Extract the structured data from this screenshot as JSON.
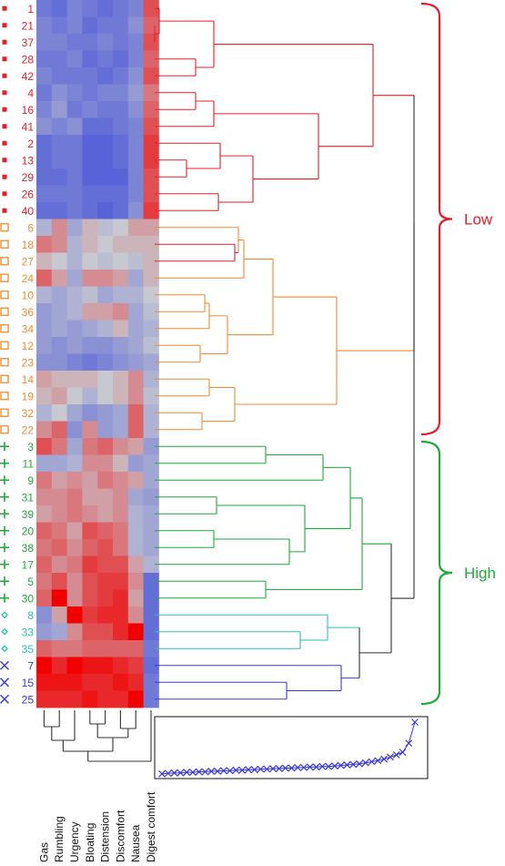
{
  "chart_data": {
    "type": "heatmap",
    "title": "",
    "columns": [
      "Gas",
      "Rumbling",
      "Urgency",
      "Bloating",
      "Distension",
      "Discomfort",
      "Nausea",
      "Digest comfort"
    ],
    "rows": [
      {
        "label": "1",
        "group": "g1"
      },
      {
        "label": "21",
        "group": "g1"
      },
      {
        "label": "37",
        "group": "g1"
      },
      {
        "label": "28",
        "group": "g1"
      },
      {
        "label": "42",
        "group": "g1"
      },
      {
        "label": "4",
        "group": "g1"
      },
      {
        "label": "16",
        "group": "g1"
      },
      {
        "label": "41",
        "group": "g1"
      },
      {
        "label": "2",
        "group": "g1"
      },
      {
        "label": "13",
        "group": "g1"
      },
      {
        "label": "29",
        "group": "g1"
      },
      {
        "label": "26",
        "group": "g1"
      },
      {
        "label": "40",
        "group": "g1"
      },
      {
        "label": "6",
        "group": "g2"
      },
      {
        "label": "18",
        "group": "g2"
      },
      {
        "label": "27",
        "group": "g2"
      },
      {
        "label": "24",
        "group": "g2"
      },
      {
        "label": "10",
        "group": "g2"
      },
      {
        "label": "36",
        "group": "g2"
      },
      {
        "label": "34",
        "group": "g2"
      },
      {
        "label": "12",
        "group": "g2"
      },
      {
        "label": "23",
        "group": "g2"
      },
      {
        "label": "14",
        "group": "g2"
      },
      {
        "label": "19",
        "group": "g2"
      },
      {
        "label": "32",
        "group": "g2"
      },
      {
        "label": "22",
        "group": "g2"
      },
      {
        "label": "3",
        "group": "g3"
      },
      {
        "label": "11",
        "group": "g3"
      },
      {
        "label": "9",
        "group": "g3"
      },
      {
        "label": "31",
        "group": "g3"
      },
      {
        "label": "39",
        "group": "g3"
      },
      {
        "label": "20",
        "group": "g3"
      },
      {
        "label": "38",
        "group": "g3"
      },
      {
        "label": "17",
        "group": "g3"
      },
      {
        "label": "5",
        "group": "g3"
      },
      {
        "label": "30",
        "group": "g3"
      },
      {
        "label": "8",
        "group": "g4"
      },
      {
        "label": "33",
        "group": "g4"
      },
      {
        "label": "35",
        "group": "g4"
      },
      {
        "label": "7",
        "group": "g5"
      },
      {
        "label": "15",
        "group": "g5"
      },
      {
        "label": "25",
        "group": "g5"
      }
    ],
    "values": [
      [
        -0.7,
        -0.8,
        -0.6,
        -0.7,
        -0.8,
        -0.7,
        -0.6,
        0.6
      ],
      [
        -0.6,
        -0.7,
        -0.6,
        -0.8,
        -0.7,
        -0.7,
        -0.5,
        0.5
      ],
      [
        -0.6,
        -0.6,
        -0.7,
        -0.7,
        -0.6,
        -0.7,
        -0.6,
        0.6
      ],
      [
        -0.7,
        -0.7,
        -0.6,
        -0.8,
        -0.7,
        -0.8,
        -0.6,
        0.5
      ],
      [
        -0.6,
        -0.7,
        -0.7,
        -0.7,
        -0.8,
        -0.7,
        -0.5,
        0.6
      ],
      [
        -0.7,
        -0.5,
        -0.6,
        -0.7,
        -0.6,
        -0.6,
        -0.4,
        0.4
      ],
      [
        -0.6,
        -0.4,
        -0.7,
        -0.6,
        -0.7,
        -0.7,
        -0.5,
        0.5
      ],
      [
        -0.5,
        -0.6,
        -0.5,
        -0.8,
        -0.8,
        -0.7,
        -0.6,
        0.6
      ],
      [
        -0.8,
        -0.7,
        -0.7,
        -0.9,
        -0.9,
        -0.8,
        -0.6,
        0.7
      ],
      [
        -0.8,
        -0.7,
        -0.7,
        -0.9,
        -0.9,
        -0.8,
        -0.6,
        0.7
      ],
      [
        -0.8,
        -0.8,
        -0.7,
        -0.9,
        -0.9,
        -0.9,
        -0.6,
        0.6
      ],
      [
        -0.7,
        -0.7,
        -0.7,
        -0.8,
        -0.8,
        -0.8,
        -0.6,
        0.6
      ],
      [
        -0.8,
        -0.8,
        -0.7,
        -0.8,
        -0.9,
        -0.8,
        -0.5,
        0.7
      ],
      [
        -0.2,
        0.3,
        -0.3,
        0.1,
        -0.1,
        0.0,
        0.2,
        0.2
      ],
      [
        0.4,
        0.3,
        -0.2,
        0.1,
        0.0,
        0.1,
        0.1,
        0.1
      ],
      [
        0.1,
        0.0,
        -0.2,
        0.0,
        -0.1,
        0.0,
        -0.1,
        0.1
      ],
      [
        0.5,
        0.2,
        -0.3,
        0.3,
        0.3,
        0.2,
        -0.3,
        0.1
      ],
      [
        -0.2,
        -0.3,
        -0.2,
        -0.1,
        -0.3,
        -0.2,
        -0.2,
        0.0
      ],
      [
        -0.4,
        -0.3,
        -0.2,
        0.2,
        0.2,
        0.3,
        -0.3,
        -0.1
      ],
      [
        -0.4,
        -0.3,
        -0.4,
        -0.3,
        -0.2,
        0.1,
        -0.3,
        -0.2
      ],
      [
        -0.4,
        -0.5,
        -0.4,
        -0.5,
        -0.5,
        -0.4,
        -0.3,
        -0.1
      ],
      [
        -0.5,
        -0.5,
        -0.6,
        -0.7,
        -0.6,
        -0.5,
        -0.4,
        -0.3
      ],
      [
        0.2,
        0.1,
        0.1,
        0.1,
        0.0,
        0.1,
        0.3,
        -0.2
      ],
      [
        0.1,
        0.2,
        0.0,
        -0.2,
        0.0,
        0.1,
        0.3,
        -0.1
      ],
      [
        -0.2,
        0.0,
        -0.3,
        -0.5,
        -0.4,
        -0.3,
        0.5,
        -0.2
      ],
      [
        0.3,
        0.5,
        -0.5,
        0.3,
        -0.4,
        -0.3,
        0.5,
        -0.2
      ],
      [
        0.6,
        0.4,
        -0.3,
        0.4,
        0.5,
        0.3,
        0.2,
        -0.4
      ],
      [
        -0.3,
        -0.3,
        -0.2,
        0.3,
        0.3,
        0.1,
        -0.4,
        -0.3
      ],
      [
        0.4,
        0.2,
        0.3,
        0.2,
        0.4,
        0.3,
        0.2,
        -0.3
      ],
      [
        0.3,
        0.3,
        0.4,
        0.2,
        0.2,
        0.3,
        -0.3,
        -0.4
      ],
      [
        0.2,
        0.3,
        0.4,
        0.3,
        0.2,
        0.3,
        -0.2,
        -0.3
      ],
      [
        0.5,
        0.4,
        0.2,
        0.6,
        0.5,
        0.4,
        -0.2,
        -0.3
      ],
      [
        0.4,
        0.5,
        0.3,
        0.5,
        0.6,
        0.4,
        -0.2,
        -0.3
      ],
      [
        0.5,
        0.3,
        0.4,
        0.7,
        0.6,
        0.6,
        0.2,
        -0.2
      ],
      [
        0.4,
        0.6,
        0.3,
        0.6,
        0.7,
        0.7,
        0.3,
        -0.8
      ],
      [
        0.5,
        1.0,
        0.3,
        0.6,
        0.7,
        0.8,
        0.2,
        -0.8
      ],
      [
        -0.5,
        0.2,
        1.0,
        0.7,
        0.8,
        0.8,
        0.3,
        -0.8
      ],
      [
        -0.4,
        -0.3,
        0.3,
        0.6,
        0.6,
        0.8,
        1.0,
        -0.8
      ],
      [
        0.5,
        0.4,
        0.4,
        0.5,
        0.5,
        0.5,
        0.5,
        -0.7
      ],
      [
        1.0,
        0.8,
        1.0,
        0.9,
        0.9,
        0.8,
        0.7,
        -0.8
      ],
      [
        0.9,
        0.9,
        0.9,
        0.8,
        0.8,
        0.9,
        0.8,
        -0.7
      ],
      [
        0.8,
        0.8,
        0.8,
        0.9,
        0.8,
        0.8,
        1.0,
        -0.7
      ]
    ],
    "groups": {
      "g1": {
        "color": "#e0202a",
        "marker": "square-filled"
      },
      "g2": {
        "color": "#f08a30",
        "marker": "square-open"
      },
      "g3": {
        "color": "#1faa3a",
        "marker": "plus"
      },
      "g4": {
        "color": "#2ac4a6",
        "marker": "diamond-open"
      },
      "g5": {
        "color": "#3a3ad0",
        "marker": "cross"
      }
    },
    "clusters": [
      {
        "label": "Low",
        "color": "#e0202a",
        "rows": [
          "g1",
          "g2"
        ]
      },
      {
        "label": "High",
        "color": "#1faa3a",
        "rows": [
          "g3",
          "g4",
          "g5"
        ]
      }
    ],
    "colorscale": {
      "low": "#4a58d8",
      "mid": "#c8c8d0",
      "high": "#f00000",
      "range": [
        -1,
        1
      ]
    },
    "inset_scree": {
      "marker": "cross",
      "color": "#3a3ad0",
      "values": [
        0.02,
        0.03,
        0.04,
        0.04,
        0.05,
        0.05,
        0.06,
        0.06,
        0.07,
        0.07,
        0.08,
        0.08,
        0.09,
        0.09,
        0.1,
        0.1,
        0.11,
        0.11,
        0.12,
        0.12,
        0.13,
        0.13,
        0.14,
        0.14,
        0.15,
        0.15,
        0.16,
        0.16,
        0.17,
        0.18,
        0.19,
        0.2,
        0.21,
        0.23,
        0.25,
        0.27,
        0.3,
        0.34,
        0.38,
        0.43,
        0.6,
        1.0
      ]
    }
  }
}
